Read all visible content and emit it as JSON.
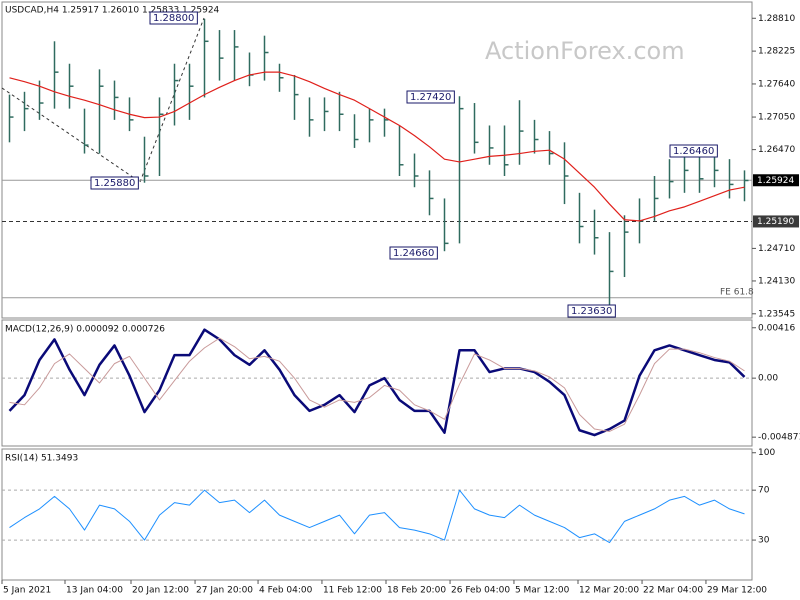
{
  "chart_data": [
    {
      "type": "hlc",
      "title": "USDCAD,H4  1.25917 1.26010 1.25833 1.25924",
      "watermark": "ActionForex.com",
      "color": "#2f6b5f",
      "xlim": [
        0,
        50
      ],
      "ylim": [
        1.2347,
        1.291
      ],
      "yticks": [
        {
          "value": 1.2881,
          "label": "1.28810"
        },
        {
          "value": 1.28225,
          "label": "1.28225"
        },
        {
          "value": 1.2764,
          "label": "1.27640"
        },
        {
          "value": 1.2705,
          "label": "1.27050"
        },
        {
          "value": 1.2647,
          "label": "1.26470"
        },
        {
          "value": 1.2471,
          "label": "1.24710"
        },
        {
          "value": 1.2413,
          "label": "1.24130"
        },
        {
          "value": 1.23545,
          "label": "1.23545"
        }
      ],
      "high": [
        1.2745,
        1.275,
        1.277,
        1.284,
        1.28,
        1.272,
        1.279,
        1.277,
        1.274,
        1.267,
        1.274,
        1.28,
        1.28,
        1.288,
        1.286,
        1.286,
        1.282,
        1.285,
        1.28,
        1.278,
        1.274,
        1.274,
        1.275,
        1.271,
        1.272,
        1.272,
        1.269,
        1.264,
        1.261,
        1.256,
        1.2742,
        1.273,
        1.269,
        1.269,
        1.2735,
        1.27,
        1.268,
        1.266,
        1.257,
        1.254,
        1.25,
        1.253,
        1.256,
        1.26,
        1.263,
        1.2646,
        1.2645,
        1.264,
        1.263,
        1.261
      ],
      "low": [
        1.266,
        1.268,
        1.27,
        1.272,
        1.272,
        1.264,
        1.264,
        1.27,
        1.268,
        1.2588,
        1.26,
        1.269,
        1.27,
        1.274,
        1.277,
        1.277,
        1.276,
        1.277,
        1.275,
        1.27,
        1.267,
        1.268,
        1.268,
        1.265,
        1.266,
        1.267,
        1.26,
        1.258,
        1.253,
        1.2466,
        1.248,
        1.264,
        1.262,
        1.26,
        1.262,
        1.264,
        1.262,
        1.255,
        1.248,
        1.246,
        1.2363,
        1.242,
        1.248,
        1.252,
        1.256,
        1.257,
        1.257,
        1.258,
        1.256,
        1.2555
      ],
      "close": [
        1.2705,
        1.272,
        1.273,
        1.2785,
        1.276,
        1.2655,
        1.276,
        1.274,
        1.27,
        1.26,
        1.271,
        1.277,
        1.276,
        1.284,
        1.281,
        1.283,
        1.278,
        1.282,
        1.2775,
        1.2745,
        1.27,
        1.2715,
        1.271,
        1.2665,
        1.27,
        1.27,
        1.262,
        1.26,
        1.256,
        1.248,
        1.272,
        1.266,
        1.265,
        1.262,
        1.268,
        1.2665,
        1.264,
        1.26,
        1.251,
        1.249,
        1.243,
        1.25,
        1.252,
        1.256,
        1.259,
        1.261,
        1.2595,
        1.261,
        1.2585,
        1.2592
      ],
      "ma": {
        "color": "#e0201b",
        "values": [
          1.2775,
          1.2768,
          1.276,
          1.275,
          1.2742,
          1.2735,
          1.2727,
          1.2718,
          1.271,
          1.2704,
          1.2705,
          1.2715,
          1.273,
          1.2745,
          1.2758,
          1.277,
          1.278,
          1.2785,
          1.2785,
          1.2778,
          1.2768,
          1.2756,
          1.2745,
          1.2735,
          1.272,
          1.2705,
          1.269,
          1.2672,
          1.2652,
          1.263,
          1.2625,
          1.263,
          1.2635,
          1.2637,
          1.264,
          1.2644,
          1.2646,
          1.263,
          1.2605,
          1.258,
          1.255,
          1.2522,
          1.252,
          1.2528,
          1.2538,
          1.2545,
          1.2555,
          1.2565,
          1.2575,
          1.258
        ]
      },
      "hlines": [
        {
          "value": 1.25924,
          "label": "1.25924",
          "style": "solid",
          "boxed": true,
          "box_color": "#000000"
        },
        {
          "value": 1.2519,
          "label": "1.25190",
          "style": "dashed",
          "boxed": true,
          "box_color": "#3a3a3a"
        },
        {
          "value": 1.2383,
          "label": "FE 61.8",
          "style": "solid",
          "boxed": false
        }
      ],
      "annotations": [
        "1.28800",
        "1.27420",
        "1.25880",
        "1.24660",
        "1.26460",
        "1.23630"
      ]
    },
    {
      "type": "line",
      "title": "MACD(12,26,9) 0.000092 0.000726",
      "xlim": [
        0,
        50
      ],
      "ylim": [
        -0.0056,
        0.0048
      ],
      "yticks": [
        0.00416,
        {
          "value": 0,
          "label": "0.00"
        },
        -0.004871
      ],
      "zero_line": true,
      "series": [
        {
          "color": "#0a0a78",
          "width": 2.5,
          "values": [
            -0.0027,
            -0.0014,
            0.0015,
            0.0032,
            0.0007,
            -0.0014,
            0.0011,
            0.0027,
            0.0002,
            -0.0028,
            -0.001,
            0.0019,
            0.0019,
            0.004,
            0.0032,
            0.0019,
            0.0011,
            0.0023,
            0.0007,
            -0.0014,
            -0.0027,
            -0.0022,
            -0.0014,
            -0.0028,
            -0.0006,
            0,
            -0.0018,
            -0.0027,
            -0.0027,
            -0.0045,
            0.0023,
            0.0023,
            0.0005,
            0.0008,
            0.0008,
            0.0005,
            -0.0003,
            -0.0014,
            -0.0043,
            -0.0047,
            -0.0042,
            -0.0035,
            0.0002,
            0.0023,
            0.0027,
            0.0023,
            0.0019,
            0.0015,
            0.0013,
            0.0001
          ]
        },
        {
          "color": "#c99a9a",
          "width": 1,
          "values": [
            -0.002,
            -0.0022,
            -0.0008,
            0.0012,
            0.002,
            0.0008,
            -0.0004,
            0.0012,
            0.0018,
            0,
            -0.0018,
            -0.0002,
            0.0014,
            0.0025,
            0.0033,
            0.0026,
            0.0016,
            0.0018,
            0.0014,
            0,
            -0.0018,
            -0.0024,
            -0.0018,
            -0.002,
            -0.0016,
            -0.0006,
            -0.001,
            -0.0022,
            -0.0027,
            -0.0034,
            -0.0005,
            0.002,
            0.0015,
            0.0008,
            0.0008,
            0.0006,
            0.0001,
            -0.0008,
            -0.003,
            -0.0042,
            -0.0044,
            -0.0038,
            -0.0014,
            0.0012,
            0.0024,
            0.0024,
            0.0021,
            0.0017,
            0.0014,
            0.0006
          ]
        }
      ]
    },
    {
      "type": "line",
      "title": "RSI(14) 51.3493",
      "xlim": [
        0,
        50
      ],
      "ylim": [
        -2,
        103
      ],
      "yticks": [
        30,
        70,
        100
      ],
      "grid_levels": [
        30,
        70
      ],
      "series": [
        {
          "color": "#1e90ff",
          "width": 1,
          "values": [
            40,
            48,
            55,
            65,
            55,
            38,
            58,
            55,
            45,
            30,
            50,
            60,
            58,
            70,
            60,
            62,
            52,
            62,
            50,
            45,
            40,
            45,
            50,
            35,
            50,
            52,
            40,
            38,
            35,
            30,
            70,
            55,
            50,
            48,
            58,
            50,
            45,
            40,
            32,
            35,
            28,
            45,
            50,
            55,
            62,
            65,
            58,
            62,
            55,
            51
          ]
        }
      ],
      "xticks": [
        {
          "value": 0,
          "label": "5 Jan 2021"
        },
        {
          "value": 4.2,
          "label": "13 Jan 04:00"
        },
        {
          "value": 8.6,
          "label": "20 Jan 12:00"
        },
        {
          "value": 12.87,
          "label": "27 Jan 20:00"
        },
        {
          "value": 17.07,
          "label": "4 Feb 04:00"
        },
        {
          "value": 21.33,
          "label": "11 Feb 12:00"
        },
        {
          "value": 25.6,
          "label": "18 Feb 20:00"
        },
        {
          "value": 29.87,
          "label": "26 Feb 04:00"
        },
        {
          "value": 34.13,
          "label": "5 Mar 12:00"
        },
        {
          "value": 38.4,
          "label": "12 Mar 20:00"
        },
        {
          "value": 42.67,
          "label": "22 Mar 04:00"
        },
        {
          "value": 46.93,
          "label": "29 Mar 12:00"
        }
      ]
    }
  ]
}
